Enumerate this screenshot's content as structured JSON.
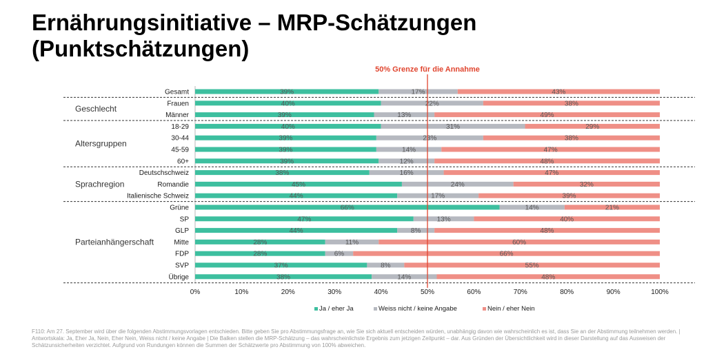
{
  "title": "Ernährungsinitiative – MRP-Schätzungen (Punktschätzungen)",
  "footnote": "F110: Am 27. September wird über die folgenden Abstimmungsvorlagen entschieden. Bitte geben Sie pro Abstimmungsfrage an, wie Sie sich aktuell entscheiden würden, unabhängig davon wie wahrscheinlich es ist, dass Sie an der Abstimmung teilnehmen werden. | Antwortskala: Ja, Eher Ja, Nein, Eher Nein, Weiss nicht / keine Angabe | Die Balken stellen die MRP-Schätzung – das wahrscheinlichste Ergebnis zum jetzigen Zeitpunkt – dar. Aus Gründen der Übersichtlichkeit wird in dieser Darstellung auf das Ausweisen der Schätzunsicherheiten verzichtet. Aufgrund von Rundungen können die Summen der Schätzwerte pro Abstimmung von 100% abweichen.",
  "colors": {
    "ja": "#3dbf9f",
    "weiss": "#b6b9c0",
    "nein": "#ef8f86",
    "threshold": "#e0452f"
  },
  "chart_data": {
    "type": "bar",
    "orientation": "horizontal-stacked",
    "threshold": {
      "value": 50,
      "label": "50% Grenze für die Annahme"
    },
    "xlim": [
      0,
      100
    ],
    "xticks": [
      "0%",
      "10%",
      "20%",
      "30%",
      "40%",
      "50%",
      "60%",
      "70%",
      "80%",
      "90%",
      "100%"
    ],
    "series": [
      {
        "name": "Ja / eher Ja",
        "key": "ja"
      },
      {
        "name": "Weiss nicht / keine Angabe",
        "key": "weiss"
      },
      {
        "name": "Nein / eher Nein",
        "key": "nein"
      }
    ],
    "categories": [
      {
        "label": "Gesamt",
        "group": "",
        "ja": 39,
        "weiss": 17,
        "nein": 43,
        "x": [
          39.5,
          56.5
        ]
      },
      {
        "label": "Frauen",
        "group": "Geschlecht",
        "ja": 40,
        "weiss": 22,
        "nein": 38,
        "x": [
          40,
          62
        ]
      },
      {
        "label": "Männer",
        "group": "Geschlecht",
        "ja": 39,
        "weiss": 13,
        "nein": 49,
        "x": [
          38.5,
          51.5
        ]
      },
      {
        "label": "18-29",
        "group": "Altersgruppen",
        "ja": 40,
        "weiss": 31,
        "nein": 29,
        "x": [
          40,
          71
        ]
      },
      {
        "label": "30-44",
        "group": "Altersgruppen",
        "ja": 39,
        "weiss": 23,
        "nein": 38,
        "x": [
          39,
          62
        ]
      },
      {
        "label": "45-59",
        "group": "Altersgruppen",
        "ja": 39,
        "weiss": 14,
        "nein": 47,
        "x": [
          39,
          53
        ]
      },
      {
        "label": "60+",
        "group": "Altersgruppen",
        "ja": 39,
        "weiss": 12,
        "nein": 48,
        "x": [
          39.5,
          51.5
        ]
      },
      {
        "label": "Deutschschweiz",
        "group": "Sprachregion",
        "ja": 38,
        "weiss": 16,
        "nein": 47,
        "x": [
          37.5,
          53.5
        ]
      },
      {
        "label": "Romandie",
        "group": "Sprachregion",
        "ja": 45,
        "weiss": 24,
        "nein": 32,
        "x": [
          44.5,
          68.5
        ]
      },
      {
        "label": "Italienische Schweiz",
        "group": "Sprachregion",
        "ja": 44,
        "weiss": 17,
        "nein": 39,
        "x": [
          43.5,
          61
        ]
      },
      {
        "label": "Grüne",
        "group": "Parteianhängerschaft",
        "ja": 66,
        "weiss": 14,
        "nein": 21,
        "x": [
          65.5,
          79.5
        ]
      },
      {
        "label": "SP",
        "group": "Parteianhängerschaft",
        "ja": 47,
        "weiss": 13,
        "nein": 40,
        "x": [
          47,
          60
        ]
      },
      {
        "label": "GLP",
        "group": "Parteianhängerschaft",
        "ja": 44,
        "weiss": 8,
        "nein": 48,
        "x": [
          43.5,
          51.5
        ]
      },
      {
        "label": "Mitte",
        "group": "Parteianhängerschaft",
        "ja": 28,
        "weiss": 11,
        "nein": 60,
        "x": [
          28,
          39.5
        ]
      },
      {
        "label": "FDP",
        "group": "Parteianhängerschaft",
        "ja": 28,
        "weiss": 6,
        "nein": 66,
        "x": [
          28,
          34
        ]
      },
      {
        "label": "SVP",
        "group": "Parteianhängerschaft",
        "ja": 37,
        "weiss": 8,
        "nein": 55,
        "x": [
          37,
          45
        ]
      },
      {
        "label": "Übrige",
        "group": "Parteianhängerschaft",
        "ja": 38,
        "weiss": 14,
        "nein": 48,
        "x": [
          38,
          52
        ]
      }
    ],
    "groups": [
      "Geschlecht",
      "Altersgruppen",
      "Sprachregion",
      "Parteianhängerschaft"
    ],
    "legend_position": "bottom"
  }
}
